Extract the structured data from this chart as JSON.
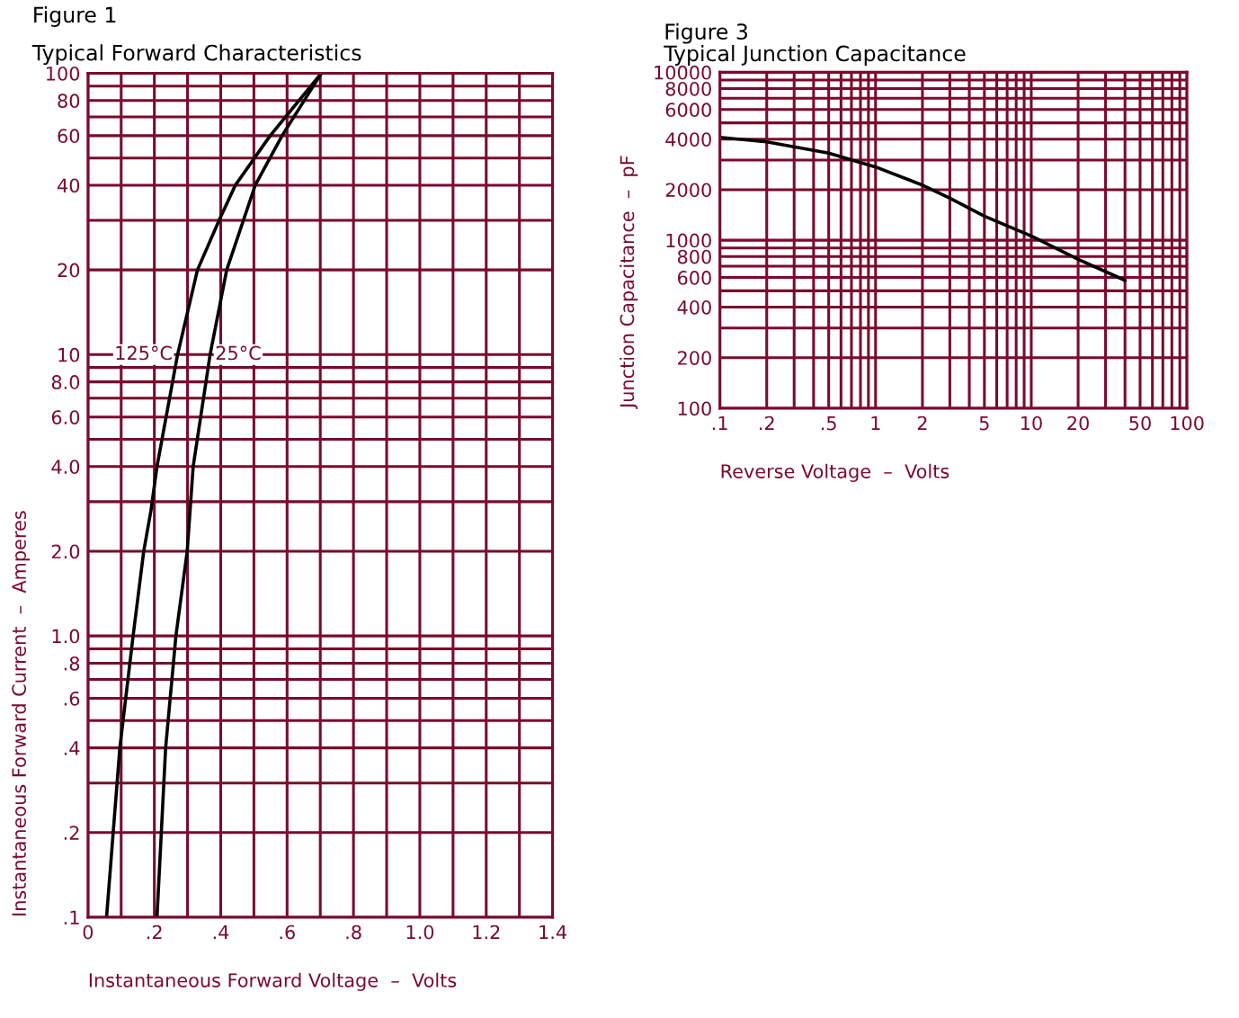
{
  "chart_data": [
    {
      "type": "line",
      "title": "Figure 1",
      "subtitle": "Typical Forward Characteristics",
      "xlabel": "Instantaneous Forward Voltage  –  Volts",
      "ylabel": "Instantaneous Forward Current  –  Amperes",
      "log": "y",
      "grid": true,
      "legend": false,
      "marker": "none",
      "line_style": "solid",
      "xlim": [
        0,
        1.4
      ],
      "ylim": [
        0.1,
        100
      ],
      "xticks": [
        0,
        {
          "value": 0.1,
          "label": null
        },
        {
          "value": 0.2,
          "label": ".2"
        },
        {
          "value": 0.3,
          "label": null
        },
        {
          "value": 0.4,
          "label": ".4"
        },
        {
          "value": 0.5,
          "label": null
        },
        {
          "value": 0.6,
          "label": ".6"
        },
        {
          "value": 0.7,
          "label": null
        },
        {
          "value": 0.8,
          "label": ".8"
        },
        {
          "value": 0.9,
          "label": null
        },
        {
          "value": 1.0,
          "label": "1.0"
        },
        {
          "value": 1.1,
          "label": null
        },
        {
          "value": 1.2,
          "label": "1.2"
        },
        {
          "value": 1.3,
          "label": null
        },
        {
          "value": 1.4,
          "label": "1.4"
        }
      ],
      "yticks": [
        {
          "value": 0.1,
          "label": ".1"
        },
        {
          "value": 0.2,
          "label": ".2"
        },
        {
          "value": 0.3,
          "label": null
        },
        {
          "value": 0.4,
          "label": ".4"
        },
        {
          "value": 0.5,
          "label": null
        },
        {
          "value": 0.6,
          "label": ".6"
        },
        {
          "value": 0.7,
          "label": null
        },
        {
          "value": 0.8,
          "label": ".8"
        },
        {
          "value": 0.9,
          "label": null
        },
        {
          "value": 1,
          "label": "1.0"
        },
        {
          "value": 2,
          "label": "2.0"
        },
        {
          "value": 3,
          "label": null
        },
        {
          "value": 4,
          "label": "4.0"
        },
        {
          "value": 5,
          "label": null
        },
        {
          "value": 6,
          "label": "6.0"
        },
        {
          "value": 7,
          "label": null
        },
        {
          "value": 8,
          "label": "8.0"
        },
        {
          "value": 9,
          "label": null
        },
        10,
        20,
        {
          "value": 30,
          "label": null
        },
        40,
        {
          "value": 50,
          "label": null
        },
        60,
        {
          "value": 70,
          "label": null
        },
        80,
        {
          "value": 90,
          "label": null
        },
        100
      ],
      "series": [
        {
          "name": "125°C",
          "color": "#000000",
          "x": [
            0.056,
            0.096,
            0.136,
            0.168,
            0.19,
            0.208,
            0.27,
            0.33,
            0.395,
            0.444,
            0.549,
            0.703
          ],
          "values": [
            0.1,
            0.4,
            1,
            2,
            2.8,
            4,
            10,
            20,
            30,
            40,
            60,
            100
          ]
        },
        {
          "name": "25°C",
          "color": "#000000",
          "x": [
            0.208,
            0.234,
            0.265,
            0.299,
            0.317,
            0.368,
            0.418,
            0.504,
            0.585,
            0.703
          ],
          "values": [
            0.1,
            0.4,
            1,
            2,
            4,
            10,
            20,
            40,
            60,
            100
          ]
        }
      ]
    },
    {
      "type": "line",
      "title": "Figure 3",
      "subtitle": "Typical Junction Capacitance",
      "xlabel": "Reverse Voltage  –  Volts",
      "ylabel": "Junction Capacitance  –  pF",
      "log": "xy",
      "grid": true,
      "legend": false,
      "marker": "none",
      "line_style": "solid",
      "xlim": [
        0.1,
        100
      ],
      "ylim": [
        100,
        10000
      ],
      "xticks": [
        {
          "value": 0.1,
          "label": ".1"
        },
        {
          "value": 0.2,
          "label": ".2"
        },
        {
          "value": 0.3,
          "label": null
        },
        {
          "value": 0.4,
          "label": null
        },
        {
          "value": 0.5,
          "label": ".5"
        },
        {
          "value": 0.6,
          "label": null
        },
        {
          "value": 0.7,
          "label": null
        },
        {
          "value": 0.8,
          "label": null
        },
        {
          "value": 0.9,
          "label": null
        },
        1,
        2,
        {
          "value": 3,
          "label": null
        },
        {
          "value": 4,
          "label": null
        },
        5,
        {
          "value": 6,
          "label": null
        },
        {
          "value": 7,
          "label": null
        },
        {
          "value": 8,
          "label": null
        },
        {
          "value": 9,
          "label": null
        },
        10,
        20,
        {
          "value": 30,
          "label": null
        },
        {
          "value": 40,
          "label": null
        },
        50,
        {
          "value": 60,
          "label": null
        },
        {
          "value": 70,
          "label": null
        },
        {
          "value": 80,
          "label": null
        },
        {
          "value": 90,
          "label": null
        },
        100
      ],
      "yticks": [
        100,
        200,
        {
          "value": 300,
          "label": null
        },
        400,
        {
          "value": 500,
          "label": null
        },
        600,
        {
          "value": 700,
          "label": null
        },
        800,
        {
          "value": 900,
          "label": null
        },
        1000,
        2000,
        {
          "value": 3000,
          "label": null
        },
        4000,
        {
          "value": 5000,
          "label": null
        },
        6000,
        {
          "value": 7000,
          "label": null
        },
        8000,
        {
          "value": 9000,
          "label": null
        },
        10000
      ],
      "series": [
        {
          "color": "#000000",
          "x": [
            0.1,
            0.2,
            0.5,
            1,
            2,
            3,
            5,
            10,
            20,
            40
          ],
          "values": [
            4100,
            3850,
            3300,
            2730,
            2130,
            1780,
            1390,
            1060,
            770,
            577
          ]
        }
      ]
    }
  ]
}
